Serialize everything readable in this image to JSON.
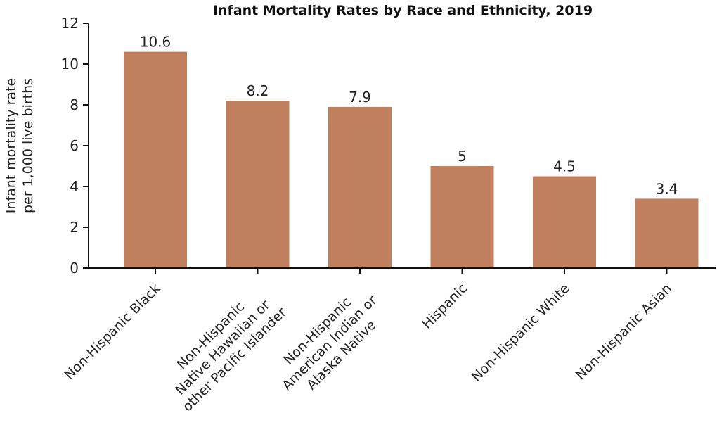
{
  "chart_data": {
    "type": "bar",
    "title": "Infant Mortality Rates by Race and Ethnicity, 2019",
    "ylabel": [
      "Infant mortality rate",
      "per 1,000 live births"
    ],
    "xlabel": "",
    "ylim": [
      0,
      12
    ],
    "yticks": [
      0,
      2,
      4,
      6,
      8,
      10,
      12
    ],
    "grid": false,
    "categories": [
      [
        "Non-Hispanic Black"
      ],
      [
        "Non-Hispanic",
        "Native Hawaiian or",
        "other Pacific Islander"
      ],
      [
        "Non-Hispanic",
        "American Indian or",
        "Alaska Native"
      ],
      [
        "Hispanic"
      ],
      [
        "Non-Hispanic White"
      ],
      [
        "Non-Hispanic Asian"
      ]
    ],
    "values": [
      10.6,
      8.2,
      7.9,
      5,
      4.5,
      3.4
    ],
    "data_labels": [
      "10.6",
      "8.2",
      "7.9",
      "5",
      "4.5",
      "3.4"
    ],
    "bar_color": "#c0805e"
  }
}
